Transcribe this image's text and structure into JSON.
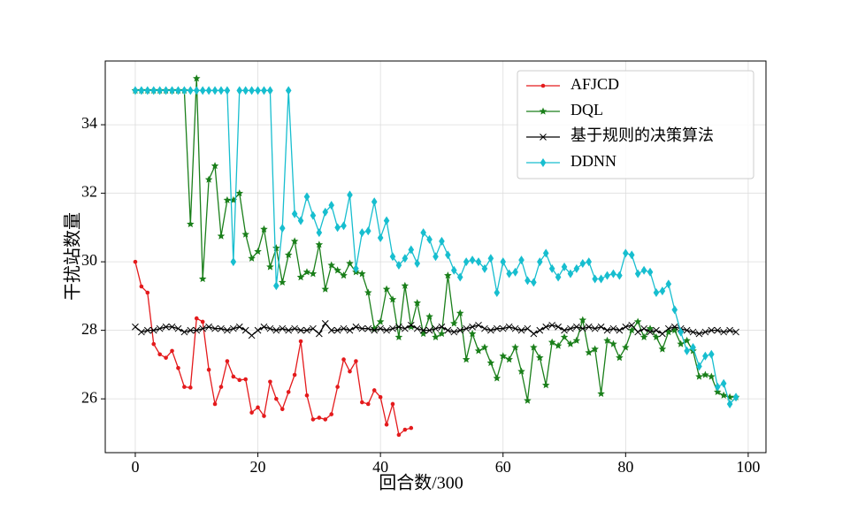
{
  "chart_data": {
    "type": "line",
    "x_label": "回合数/300",
    "y_label": "干扰站数量",
    "xlim": [
      -4.9,
      102.9
    ],
    "ylim": [
      24.43,
      35.86
    ],
    "xticks": [
      0,
      20,
      40,
      60,
      80,
      100
    ],
    "yticks": [
      26,
      28,
      30,
      32,
      34
    ],
    "grid": true,
    "legend": "upper right",
    "series": [
      {
        "name": "AFJCD",
        "color": "#e41a1c",
        "marker": "dot",
        "values": [
          30.0,
          29.28,
          29.1,
          27.6,
          27.3,
          27.2,
          27.4,
          26.9,
          26.35,
          26.33,
          28.35,
          28.25,
          26.85,
          25.85,
          26.35,
          27.1,
          26.65,
          26.55,
          26.57,
          25.6,
          25.75,
          25.5,
          26.5,
          26.0,
          25.7,
          26.2,
          26.7,
          27.68,
          26.1,
          25.4,
          25.45,
          25.4,
          25.55,
          26.35,
          27.15,
          26.8,
          27.1,
          25.9,
          25.85,
          26.25,
          26.05,
          25.25,
          25.85,
          24.95,
          25.1,
          25.15
        ]
      },
      {
        "name": "DQL",
        "color": "#1a7f1a",
        "marker": "star",
        "values": [
          35,
          35,
          35,
          35,
          35,
          35,
          35,
          35,
          35,
          31.1,
          35.35,
          29.5,
          32.4,
          32.8,
          30.75,
          31.8,
          31.8,
          32.0,
          30.8,
          30.1,
          30.3,
          30.95,
          29.85,
          30.4,
          29.4,
          30.2,
          30.6,
          29.55,
          29.7,
          29.65,
          30.5,
          29.2,
          29.9,
          29.75,
          29.6,
          29.95,
          29.7,
          29.65,
          29.1,
          28.05,
          28.25,
          29.2,
          28.9,
          27.8,
          29.3,
          28.1,
          28.8,
          27.9,
          28.4,
          27.8,
          27.9,
          29.6,
          28.2,
          28.5,
          27.15,
          27.9,
          27.4,
          27.5,
          27.05,
          26.6,
          27.25,
          27.15,
          27.5,
          26.8,
          25.95,
          27.5,
          27.2,
          26.4,
          27.65,
          27.55,
          27.8,
          27.6,
          27.7,
          28.3,
          27.35,
          27.45,
          26.15,
          27.7,
          27.6,
          27.2,
          27.5,
          28.0,
          28.25,
          27.8,
          28.05,
          27.8,
          27.45,
          27.95,
          28.0,
          27.6,
          27.7,
          27.4,
          26.65,
          26.7,
          26.65,
          26.2,
          26.1,
          26.05,
          26.05
        ]
      },
      {
        "name": "基于规则的决策算法",
        "color": "#000000",
        "marker": "x",
        "values": [
          28.1,
          27.95,
          28.0,
          28.0,
          28.05,
          28.1,
          28.1,
          28.05,
          27.95,
          28.0,
          28.0,
          28.05,
          28.1,
          28.05,
          28.05,
          28.0,
          28.05,
          28.1,
          28.0,
          27.85,
          28.0,
          28.1,
          28.05,
          28.0,
          28.05,
          28.0,
          28.05,
          28.0,
          28.0,
          28.05,
          27.9,
          28.2,
          28.0,
          28.0,
          28.05,
          28.0,
          28.1,
          28.05,
          28.05,
          28.0,
          28.05,
          28.0,
          28.05,
          28.1,
          28.05,
          28.15,
          28.05,
          28.0,
          28.0,
          28.05,
          28.1,
          28.0,
          27.95,
          28.0,
          28.05,
          28.1,
          28.15,
          28.05,
          28.0,
          28.05,
          28.05,
          28.1,
          28.05,
          28.0,
          28.05,
          27.9,
          28.0,
          28.1,
          28.15,
          28.1,
          28.0,
          28.05,
          28.1,
          28.05,
          28.1,
          28.05,
          28.1,
          28.0,
          28.05,
          28.0,
          28.1,
          28.15,
          27.95,
          28.05,
          27.95,
          28.0,
          27.9,
          28.05,
          28.1,
          28.05,
          28.0,
          27.95,
          27.9,
          27.95,
          28.0,
          28.0,
          27.95,
          28.0,
          27.95
        ]
      },
      {
        "name": "DDNN",
        "color": "#17becf",
        "marker": "diamond",
        "values": [
          35,
          35,
          35,
          35,
          35,
          35,
          35,
          35,
          35,
          35,
          35,
          35,
          35,
          35,
          35,
          35,
          30.0,
          35,
          35,
          35,
          35,
          35,
          35,
          29.3,
          30.98,
          35,
          31.4,
          31.2,
          31.9,
          31.35,
          30.85,
          31.45,
          31.65,
          31.0,
          31.05,
          31.95,
          29.8,
          30.85,
          30.9,
          31.75,
          30.7,
          31.2,
          30.15,
          29.9,
          30.1,
          30.35,
          29.95,
          30.85,
          30.65,
          30.15,
          30.6,
          30.2,
          29.75,
          29.55,
          30.0,
          30.05,
          30.0,
          29.8,
          30.1,
          29.1,
          30.0,
          29.65,
          29.7,
          30.05,
          29.45,
          29.4,
          30.0,
          30.25,
          29.8,
          29.55,
          29.85,
          29.65,
          29.8,
          29.95,
          30.0,
          29.5,
          29.5,
          29.6,
          29.65,
          29.6,
          30.25,
          30.2,
          29.65,
          29.75,
          29.7,
          29.1,
          29.15,
          29.35,
          28.6,
          27.95,
          27.4,
          27.5,
          26.95,
          27.25,
          27.3,
          26.35,
          26.45,
          25.85,
          26.05
        ]
      }
    ]
  }
}
